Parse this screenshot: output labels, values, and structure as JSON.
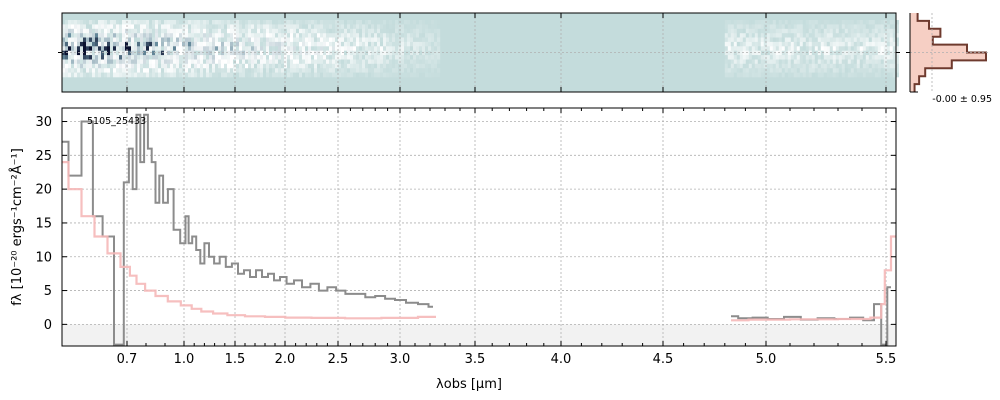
{
  "chart_data": [
    {
      "panel": "2d-spectrum",
      "type": "heatmap",
      "x_range_um": [
        0.6,
        5.52
      ],
      "background_color": "#c4dcdc",
      "trace_coverage_um": [
        [
          0.6,
          3.25
        ],
        [
          4.8,
          5.52
        ]
      ],
      "colors": {
        "dark": "#0b1230",
        "mid": "#6a8fa0",
        "light": "#ffffff"
      }
    },
    {
      "panel": "1d-spectrum",
      "type": "line",
      "annotation": "5105_25433",
      "xlabel": "λobs [μm]",
      "ylabel": "fλ [10⁻²⁰ ergs⁻¹cm⁻²Å⁻¹]",
      "x_ticks": [
        "0.7",
        "1.0",
        "1.5",
        "2.0",
        "2.5",
        "3.0",
        "3.5",
        "4.0",
        "4.5",
        "5.0",
        "5.5"
      ],
      "y_ticks": [
        "0",
        "5",
        "10",
        "15",
        "20",
        "25",
        "30"
      ],
      "ylim": [
        -3.2,
        32
      ],
      "grid": true,
      "zero_band_color": "#f2f2f2",
      "series": [
        {
          "role": "flux",
          "color": "#8c8c8c",
          "segments": [
            [
              [
                0.6,
                27
              ],
              [
                0.62,
                22
              ],
              [
                0.64,
                30
              ],
              [
                0.655,
                16
              ],
              [
                0.67,
                13
              ],
              [
                0.69,
                -3
              ],
              [
                0.7,
                21
              ],
              [
                0.72,
                26
              ],
              [
                0.74,
                20
              ],
              [
                0.76,
                31
              ],
              [
                0.78,
                24
              ],
              [
                0.8,
                31
              ],
              [
                0.82,
                26
              ],
              [
                0.84,
                24
              ],
              [
                0.86,
                18
              ],
              [
                0.88,
                22
              ],
              [
                0.9,
                18
              ],
              [
                0.93,
                20
              ],
              [
                0.96,
                14
              ],
              [
                1.0,
                12
              ],
              [
                1.03,
                16
              ],
              [
                1.06,
                12
              ],
              [
                1.1,
                13
              ],
              [
                1.14,
                11
              ],
              [
                1.18,
                9
              ],
              [
                1.22,
                12
              ],
              [
                1.27,
                10
              ],
              [
                1.32,
                9
              ],
              [
                1.38,
                10
              ],
              [
                1.44,
                8.5
              ],
              [
                1.5,
                9
              ],
              [
                1.56,
                7.5
              ],
              [
                1.62,
                8
              ],
              [
                1.68,
                7
              ],
              [
                1.74,
                8
              ],
              [
                1.8,
                7
              ],
              [
                1.86,
                7.5
              ],
              [
                1.92,
                6.5
              ],
              [
                1.98,
                7
              ],
              [
                2.05,
                6
              ],
              [
                2.12,
                6.5
              ],
              [
                2.2,
                5.5
              ],
              [
                2.28,
                6
              ],
              [
                2.36,
                5
              ],
              [
                2.44,
                5.5
              ],
              [
                2.52,
                5
              ],
              [
                2.6,
                4.5
              ],
              [
                2.68,
                4.5
              ],
              [
                2.76,
                4
              ],
              [
                2.84,
                4.2
              ],
              [
                2.92,
                3.8
              ],
              [
                3.0,
                3.6
              ],
              [
                3.08,
                3.2
              ],
              [
                3.16,
                3.0
              ],
              [
                3.22,
                2.6
              ]
            ],
            [
              [
                4.83,
                1.2
              ],
              [
                4.9,
                0.9
              ],
              [
                4.97,
                1.0
              ],
              [
                5.04,
                0.8
              ],
              [
                5.11,
                1.1
              ],
              [
                5.18,
                0.7
              ],
              [
                5.25,
                0.9
              ],
              [
                5.32,
                0.8
              ],
              [
                5.38,
                1.0
              ],
              [
                5.43,
                0.6
              ],
              [
                5.47,
                3.0
              ],
              [
                5.49,
                -3.0
              ],
              [
                5.51,
                5.5
              ]
            ]
          ]
        },
        {
          "role": "model",
          "color": "#f5b8b8",
          "segments": [
            [
              [
                0.6,
                24
              ],
              [
                0.62,
                20
              ],
              [
                0.64,
                16
              ],
              [
                0.66,
                13
              ],
              [
                0.68,
                10.5
              ],
              [
                0.7,
                8.5
              ],
              [
                0.73,
                7.2
              ],
              [
                0.77,
                6
              ],
              [
                0.82,
                5
              ],
              [
                0.88,
                4.2
              ],
              [
                0.95,
                3.4
              ],
              [
                1.03,
                2.8
              ],
              [
                1.12,
                2.3
              ],
              [
                1.22,
                1.9
              ],
              [
                1.35,
                1.6
              ],
              [
                1.5,
                1.35
              ],
              [
                1.7,
                1.2
              ],
              [
                1.9,
                1.1
              ],
              [
                2.1,
                1.0
              ],
              [
                2.4,
                0.95
              ],
              [
                2.7,
                0.9
              ],
              [
                3.0,
                0.95
              ],
              [
                3.24,
                1.1
              ]
            ],
            [
              [
                4.83,
                0.6
              ],
              [
                5.0,
                0.7
              ],
              [
                5.2,
                0.75
              ],
              [
                5.4,
                0.8
              ],
              [
                5.47,
                1.0
              ],
              [
                5.49,
                3
              ],
              [
                5.5,
                8
              ],
              [
                5.52,
                13
              ]
            ]
          ]
        }
      ]
    },
    {
      "panel": "cross-dispersion-profile",
      "type": "area",
      "label": "-0.00 ± 0.95",
      "line_color": "#6e3a2e",
      "fill_color": "#f6cfc4",
      "profile": [
        0.1,
        0.25,
        0.4,
        0.3,
        0.75,
        1.0,
        0.55,
        0.2,
        0.12,
        0.06
      ]
    }
  ]
}
